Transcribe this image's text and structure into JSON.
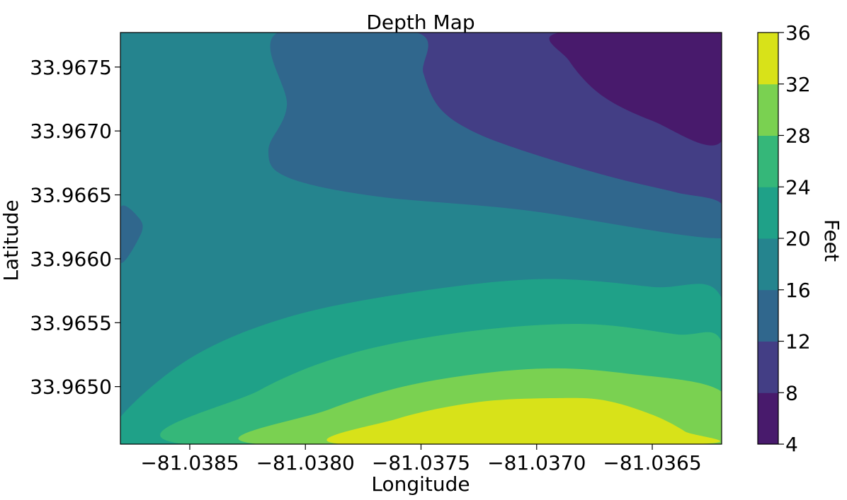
{
  "chart_data": {
    "type": "contour",
    "title": "Depth Map",
    "xlabel": "Longitude",
    "ylabel": "Latitude",
    "colorbar_label": "Feet",
    "xlim": [
      -81.0388,
      -81.0362
    ],
    "ylim": [
      33.96455,
      33.96777
    ],
    "x_ticks": [
      -81.0385,
      -81.038,
      -81.0375,
      -81.037,
      -81.0365
    ],
    "x_tick_labels": [
      "−81.0385",
      "−81.0380",
      "−81.0375",
      "−81.0370",
      "−81.0365"
    ],
    "y_ticks": [
      33.965,
      33.9655,
      33.966,
      33.9665,
      33.967,
      33.9675
    ],
    "y_tick_labels": [
      "33.9650",
      "33.9655",
      "33.9660",
      "33.9665",
      "33.9670",
      "33.9675"
    ],
    "levels": [
      4,
      8,
      12,
      16,
      20,
      24,
      28,
      32,
      36
    ],
    "level_labels": [
      "4",
      "8",
      "12",
      "16",
      "20",
      "24",
      "28",
      "32",
      "36"
    ],
    "level_colors": [
      "#481a6c",
      "#433e85",
      "#30678d",
      "#25848e",
      "#1fa188",
      "#35b779",
      "#7ad151",
      "#d8e219"
    ],
    "bands": [
      {
        "range": [
          8,
          12
        ],
        "region": [
          [
            -81.03752,
            33.96777
          ],
          [
            -81.03749,
            33.96745
          ],
          [
            -81.03742,
            33.96718
          ],
          [
            -81.03728,
            33.967
          ],
          [
            -81.03705,
            33.96684
          ],
          [
            -81.0367,
            33.96665
          ],
          [
            -81.0364,
            33.96652
          ],
          [
            -81.0362,
            33.96643
          ],
          [
            -81.0362,
            33.96777
          ]
        ]
      },
      {
        "range": [
          4,
          8
        ],
        "region": [
          [
            -81.0369,
            33.96777
          ],
          [
            -81.03686,
            33.96755
          ],
          [
            -81.03672,
            33.96728
          ],
          [
            -81.0365,
            33.96708
          ],
          [
            -81.0362,
            33.96692
          ],
          [
            -81.0362,
            33.96777
          ]
        ]
      },
      {
        "range": [
          12,
          16
        ],
        "region": [
          [
            -81.03812,
            33.96777
          ],
          [
            -81.03808,
            33.9672
          ],
          [
            -81.03816,
            33.96685
          ],
          [
            -81.03808,
            33.96664
          ],
          [
            -81.0377,
            33.96649
          ],
          [
            -81.03705,
            33.96638
          ],
          [
            -81.0362,
            33.96616
          ],
          [
            -81.0362,
            33.96643
          ],
          [
            -81.0364,
            33.96652
          ],
          [
            -81.0367,
            33.96665
          ],
          [
            -81.03705,
            33.96684
          ],
          [
            -81.03728,
            33.967
          ],
          [
            -81.03742,
            33.96718
          ],
          [
            -81.03749,
            33.96745
          ],
          [
            -81.03752,
            33.96777
          ]
        ]
      },
      {
        "range": [
          12,
          16
        ],
        "region": [
          [
            -81.0388,
            33.9664
          ],
          [
            -81.03872,
            33.96632
          ],
          [
            -81.03871,
            33.9662
          ],
          [
            -81.0388,
            33.96597
          ]
        ]
      },
      {
        "range": [
          20,
          24
        ],
        "region": [
          [
            -81.0388,
            33.96476
          ],
          [
            -81.0385,
            33.96522
          ],
          [
            -81.0381,
            33.96553
          ],
          [
            -81.0376,
            33.96572
          ],
          [
            -81.037,
            33.96584
          ],
          [
            -81.0365,
            33.96578
          ],
          [
            -81.0362,
            33.96569
          ],
          [
            -81.0362,
            33.96455
          ],
          [
            -81.0388,
            33.96455
          ]
        ]
      },
      {
        "range": [
          24,
          28
        ],
        "region": [
          [
            -81.03852,
            33.96455
          ],
          [
            -81.0382,
            33.96497
          ],
          [
            -81.0378,
            33.96526
          ],
          [
            -81.0373,
            33.96543
          ],
          [
            -81.0368,
            33.96549
          ],
          [
            -81.0364,
            33.96541
          ],
          [
            -81.0362,
            33.96535
          ],
          [
            -81.0362,
            33.96455
          ]
        ]
      },
      {
        "range": [
          28,
          32
        ],
        "region": [
          [
            -81.0382,
            33.96455
          ],
          [
            -81.0379,
            33.96482
          ],
          [
            -81.0375,
            33.96503
          ],
          [
            -81.037,
            33.96514
          ],
          [
            -81.0366,
            33.9651
          ],
          [
            -81.0362,
            33.96496
          ],
          [
            -81.0362,
            33.96455
          ]
        ]
      },
      {
        "range": [
          32,
          36
        ],
        "region": [
          [
            -81.03784,
            33.96455
          ],
          [
            -81.0376,
            33.96475
          ],
          [
            -81.03725,
            33.96488
          ],
          [
            -81.0369,
            33.96491
          ],
          [
            -81.0367,
            33.96489
          ],
          [
            -81.0365,
            33.96478
          ],
          [
            -81.03636,
            33.96465
          ],
          [
            -81.03631,
            33.96455
          ]
        ]
      }
    ]
  }
}
